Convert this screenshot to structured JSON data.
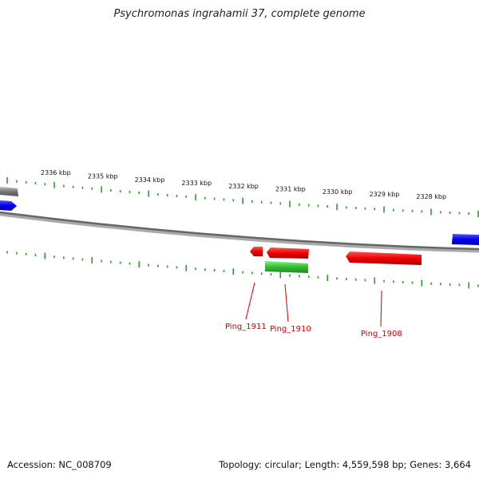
{
  "title": "Psychromonas ingrahamii 37, complete genome",
  "accession_label": "Accession: NC_008709",
  "summary_label": "Topology: circular; Length: 4,559,598 bp; Genes: 3,664",
  "scale": {
    "unit": "kbp",
    "ticks": [
      2336,
      2335,
      2334,
      2333,
      2332,
      2331,
      2330,
      2329,
      2328
    ]
  },
  "genes": [
    {
      "name": "Ping_1911",
      "color": "#ee0000"
    },
    {
      "name": "Ping_1910",
      "color": "#ee0000"
    },
    {
      "name": "Ping_1908",
      "color": "#ee0000"
    }
  ],
  "colors": {
    "forward_gene": "#ee0000",
    "reverse_gene": "#33bb33",
    "other_gene": "#0000ee",
    "tick": "#339933",
    "backbone": "#777777",
    "label": "#cc0000"
  }
}
